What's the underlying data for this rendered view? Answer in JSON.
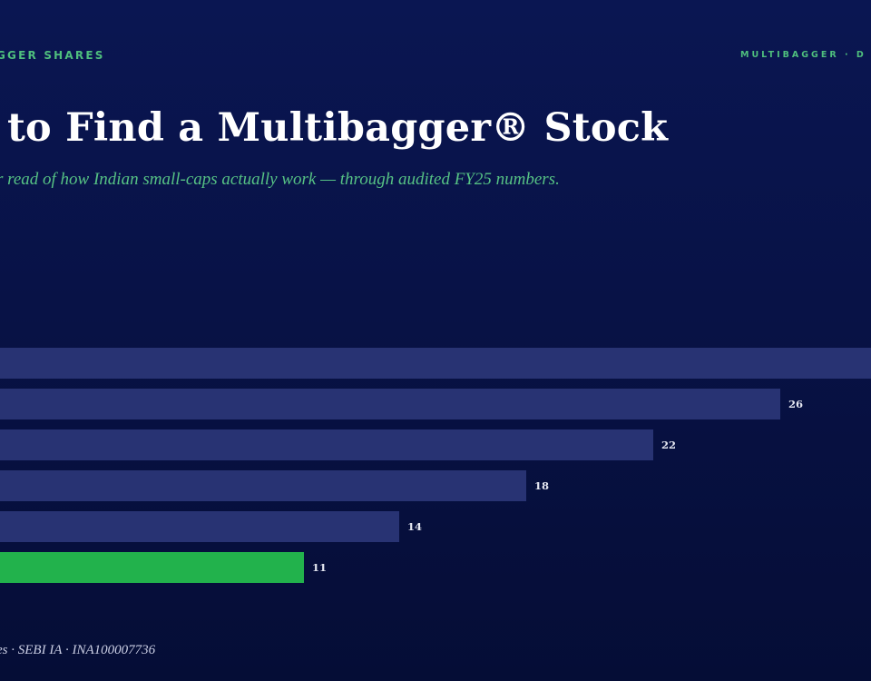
{
  "header": {
    "eyebrow_left": "GGER SHARES",
    "eyebrow_right": "MULTIBAGGER · D"
  },
  "title": "to Find a Multibagger® Stock",
  "subtitle": "r read of how Indian small-caps actually work — through audited FY25 numbers.",
  "footer": "es · SEBI IA · INA100007736",
  "chart_data": {
    "type": "bar",
    "orientation": "horizontal",
    "values": [
      null,
      26,
      22,
      18,
      14,
      11
    ],
    "data_labels": [
      "",
      "26",
      "22",
      "18",
      "14",
      "11"
    ],
    "colors": [
      "#283373",
      "#283373",
      "#283373",
      "#283373",
      "#283373",
      "#22b24c"
    ],
    "highlight_index": 5,
    "note": "first bar's value label is outside the visible area"
  }
}
